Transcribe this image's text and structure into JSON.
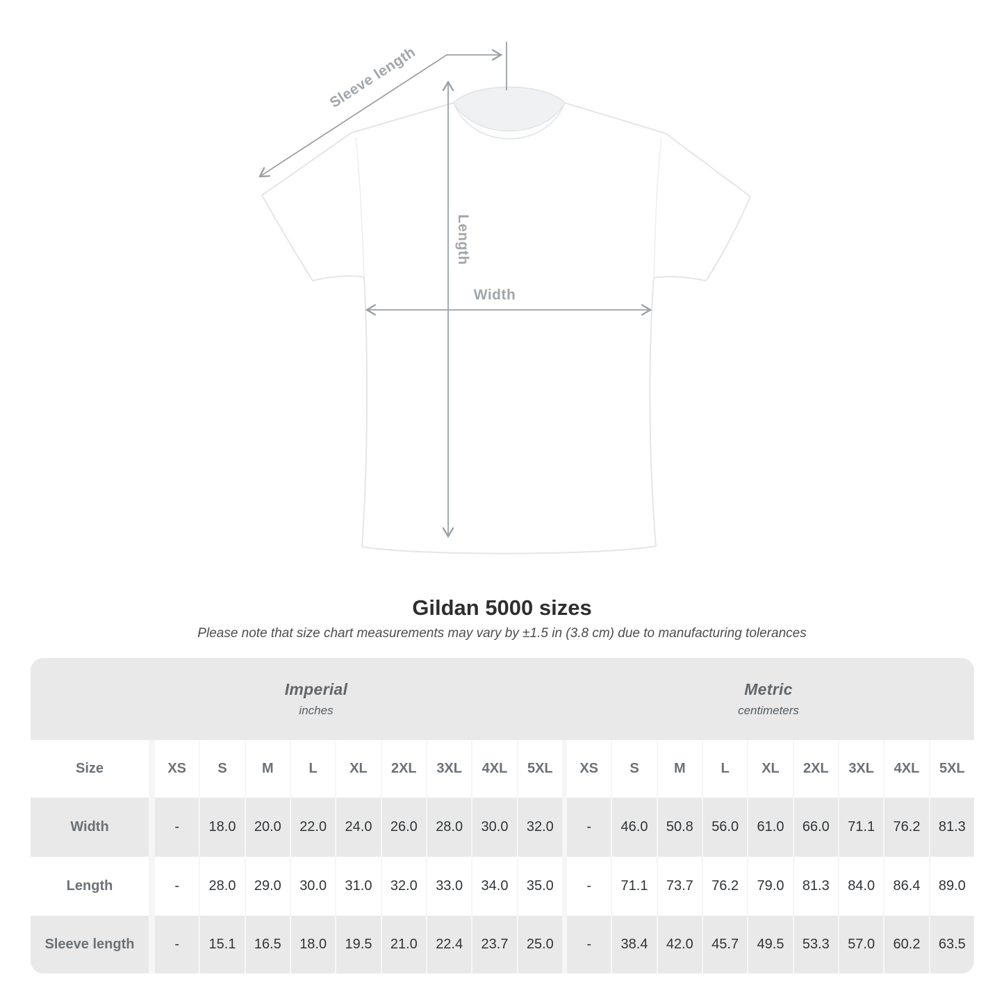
{
  "diagram": {
    "labels": {
      "sleeve_length": "Sleeve length",
      "length": "Length",
      "width": "Width"
    },
    "line_color": "#9ba0a4",
    "label_color": "#a1a6aa"
  },
  "title": "Gildan 5000 sizes",
  "subtitle": "Please note that size chart measurements may vary by ±1.5 in (3.8 cm) due to manufacturing tolerances",
  "size_table": {
    "sections": [
      {
        "label": "Imperial",
        "sublabel": "inches"
      },
      {
        "label": "Metric",
        "sublabel": "centimeters"
      }
    ],
    "size_col_header": "Size",
    "size_headers": [
      "XS",
      "S",
      "M",
      "L",
      "XL",
      "2XL",
      "3XL",
      "4XL",
      "5XL"
    ],
    "rows": [
      {
        "label": "Width",
        "imperial": [
          "-",
          "18.0",
          "20.0",
          "22.0",
          "24.0",
          "26.0",
          "28.0",
          "30.0",
          "32.0"
        ],
        "metric": [
          "-",
          "46.0",
          "50.8",
          "56.0",
          "61.0",
          "66.0",
          "71.1",
          "76.2",
          "81.3"
        ]
      },
      {
        "label": "Length",
        "imperial": [
          "-",
          "28.0",
          "29.0",
          "30.0",
          "31.0",
          "32.0",
          "33.0",
          "34.0",
          "35.0"
        ],
        "metric": [
          "-",
          "71.1",
          "73.7",
          "76.2",
          "79.0",
          "81.3",
          "84.0",
          "86.4",
          "89.0"
        ]
      },
      {
        "label": "Sleeve length",
        "imperial": [
          "-",
          "15.1",
          "16.5",
          "18.0",
          "19.5",
          "21.0",
          "22.4",
          "23.7",
          "25.0"
        ],
        "metric": [
          "-",
          "38.4",
          "42.0",
          "45.7",
          "49.5",
          "53.3",
          "57.0",
          "60.2",
          "63.5"
        ]
      }
    ],
    "colors": {
      "band_gray": "#e9e9e9",
      "separator": "#f6f6f6",
      "header_text": "#6b7176",
      "value_text": "#303437"
    }
  }
}
